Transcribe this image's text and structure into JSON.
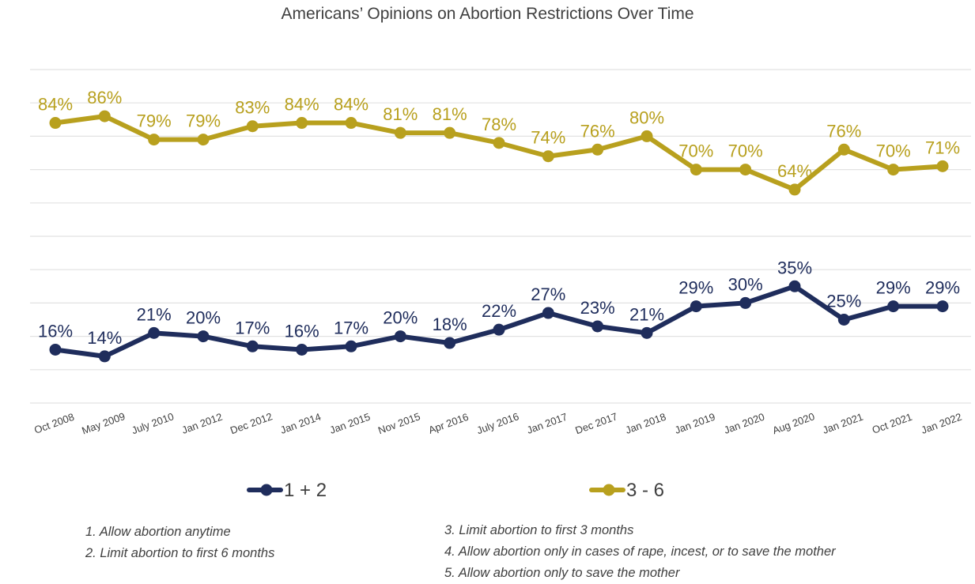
{
  "chart_data": {
    "type": "line",
    "title": "Americans’ Opinions on Abortion Restrictions Over Time",
    "categories": [
      "Oct 2008",
      "May 2009",
      "July 2010",
      "Jan 2012",
      "Dec 2012",
      "Jan 2014",
      "Jan 2015",
      "Nov 2015",
      "Apr 2016",
      "July 2016",
      "Jan 2017",
      "Dec 2017",
      "Jan 2018",
      "Jan 2019",
      "Jan 2020",
      "Aug 2020",
      "Jan 2021",
      "Oct 2021",
      "Jan 2022"
    ],
    "series": [
      {
        "name": "1 + 2",
        "color": "#1f2d5c",
        "values": [
          16,
          14,
          21,
          20,
          17,
          16,
          17,
          20,
          18,
          22,
          27,
          23,
          21,
          29,
          30,
          35,
          25,
          29,
          29
        ],
        "labels": [
          "16%",
          "14%",
          "21%",
          "20%",
          "17%",
          "16%",
          "17%",
          "20%",
          "18%",
          "22%",
          "27%",
          "23%",
          "21%",
          "29%",
          "30%",
          "35%",
          "25%",
          "29%",
          "29%"
        ]
      },
      {
        "name": "3 - 6",
        "color": "#b8a01e",
        "values": [
          84,
          86,
          79,
          79,
          83,
          84,
          84,
          81,
          81,
          78,
          74,
          76,
          80,
          70,
          70,
          64,
          76,
          70,
          71
        ],
        "labels": [
          "84%",
          "86%",
          "79%",
          "79%",
          "83%",
          "84%",
          "84%",
          "81%",
          "81%",
          "78%",
          "74%",
          "76%",
          "80%",
          "70%",
          "70%",
          "64%",
          "76%",
          "70%",
          "71%"
        ]
      }
    ],
    "ylim": [
      0,
      100
    ],
    "grid": true,
    "legend": "bottom"
  },
  "notes": {
    "left": [
      "1. Allow abortion anytime",
      "2. Limit abortion to first 6 months"
    ],
    "right": [
      "3. Limit abortion to first 3 months",
      "4. Allow abortion only in cases of rape, incest, or to save the mother",
      "5. Allow abortion only to save the mother"
    ]
  }
}
